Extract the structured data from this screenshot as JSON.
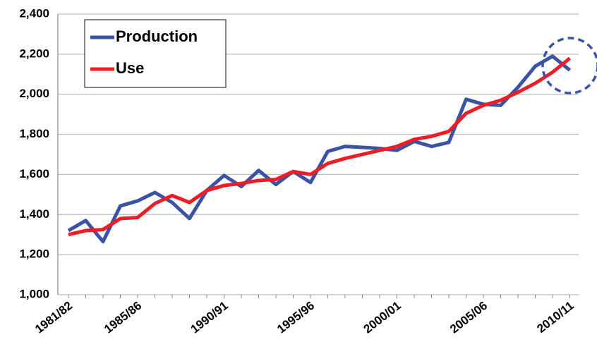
{
  "chart_data": {
    "type": "line",
    "categories": [
      "1981/82",
      null,
      null,
      null,
      "1985/86",
      null,
      null,
      null,
      null,
      "1990/91",
      null,
      null,
      null,
      null,
      "1995/96",
      null,
      null,
      null,
      null,
      "2000/01",
      null,
      null,
      null,
      null,
      "2005/06",
      null,
      null,
      null,
      null,
      "2010/11"
    ],
    "series": [
      {
        "name": "Production",
        "color": "#3a53a4",
        "values": [
          1320,
          1370,
          1265,
          1443,
          1468,
          1510,
          1460,
          1380,
          1520,
          1595,
          1540,
          1620,
          1550,
          1615,
          1560,
          1715,
          1740,
          1735,
          1730,
          1720,
          1765,
          1740,
          1760,
          1975,
          1950,
          1945,
          2035,
          2140,
          2190,
          2120
        ]
      },
      {
        "name": "Use",
        "color": "#ee1c25",
        "values": [
          1300,
          1320,
          1325,
          1380,
          1385,
          1455,
          1495,
          1460,
          1520,
          1545,
          1555,
          1570,
          1575,
          1615,
          1600,
          1655,
          1680,
          1700,
          1720,
          1740,
          1775,
          1790,
          1815,
          1905,
          1945,
          1970,
          2010,
          2055,
          2110,
          2180
        ]
      }
    ],
    "ylim": [
      1000,
      2400
    ],
    "yticks": [
      {
        "value": 1000,
        "label": "1,000"
      },
      {
        "value": 1200,
        "label": "1,200"
      },
      {
        "value": 1400,
        "label": "1,400"
      },
      {
        "value": 1600,
        "label": "1,600"
      },
      {
        "value": 1800,
        "label": "1,800"
      },
      {
        "value": 2000,
        "label": "2,000"
      },
      {
        "value": 2200,
        "label": "2,200"
      },
      {
        "value": 2400,
        "label": "2,400"
      }
    ],
    "grid": true
  }
}
